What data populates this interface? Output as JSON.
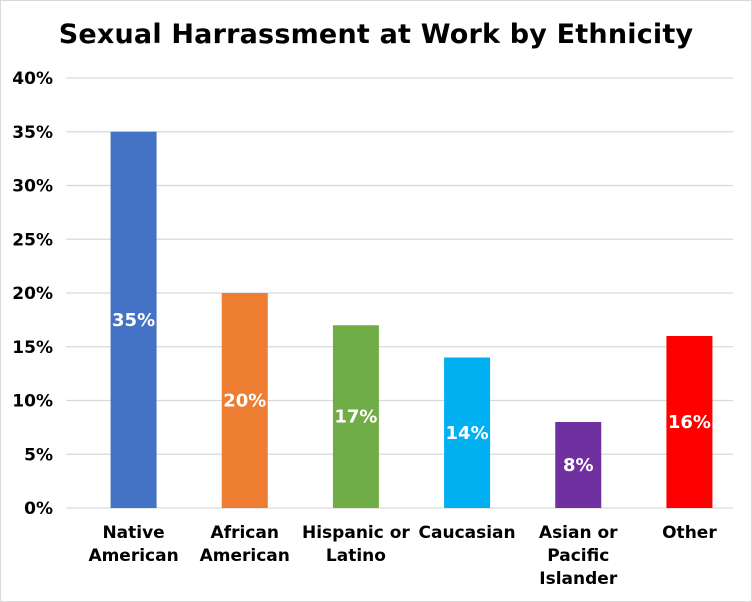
{
  "chart_data": {
    "type": "bar",
    "title": "Sexual Harrassment at Work by Ethnicity",
    "xlabel": "",
    "ylabel": "",
    "ylim": [
      0,
      40
    ],
    "yticks": [
      "0%",
      "5%",
      "10%",
      "15%",
      "20%",
      "25%",
      "30%",
      "35%",
      "40%"
    ],
    "ytick_values": [
      0,
      5,
      10,
      15,
      20,
      25,
      30,
      35,
      40
    ],
    "grid": true,
    "legend": "none",
    "categories": [
      [
        "Native",
        "American"
      ],
      [
        "African",
        "American"
      ],
      [
        "Hispanic or",
        "Latino"
      ],
      [
        "Caucasian"
      ],
      [
        "Asian or",
        "Pacific",
        "Islander"
      ],
      [
        "Other"
      ]
    ],
    "values": [
      35,
      20,
      17,
      14,
      8,
      16
    ],
    "data_labels": [
      "35%",
      "20%",
      "17%",
      "14%",
      "8%",
      "16%"
    ],
    "colors": [
      "#4472C4",
      "#ED7D31",
      "#70AD47",
      "#00B0F0",
      "#7030A0",
      "#FF0000"
    ],
    "gridline_color": "#d9d9d9"
  }
}
